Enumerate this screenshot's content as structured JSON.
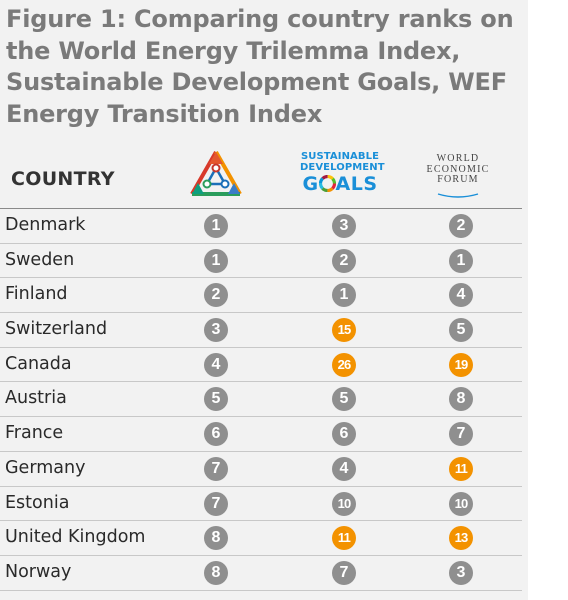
{
  "title": "Figure 1:  Comparing country ranks on the World Energy Trilemma Index, Sustainable Development Goals, WEF Energy Transition Index",
  "header": {
    "country_label": "COUNTRY",
    "sdg_logo_line1": "SUSTAINABLE",
    "sdg_logo_line2": "DEVELOPMENT",
    "sdg_logo_goals_g": "G",
    "sdg_logo_goals_rest": "ALS",
    "wef_logo_line1": "WORLD",
    "wef_logo_line2": "ECONOMIC",
    "wef_logo_line3": "FORUM"
  },
  "colors": {
    "highlight": "#f39200",
    "neutral": "#8f8f8f",
    "sdg_blue": "#1a8fd8"
  },
  "rows": [
    {
      "country": "Denmark",
      "trilemma": "1",
      "sdg": "3",
      "wef": "2"
    },
    {
      "country": "Sweden",
      "trilemma": "1",
      "sdg": "2",
      "wef": "1"
    },
    {
      "country": "Finland",
      "trilemma": "2",
      "sdg": "1",
      "wef": "4"
    },
    {
      "country": "Switzerland",
      "trilemma": "3",
      "sdg": "15",
      "wef": "5"
    },
    {
      "country": "Canada",
      "trilemma": "4",
      "sdg": "26",
      "wef": "19"
    },
    {
      "country": "Austria",
      "trilemma": "5",
      "sdg": "5",
      "wef": "8"
    },
    {
      "country": "France",
      "trilemma": "6",
      "sdg": "6",
      "wef": "7"
    },
    {
      "country": "Germany",
      "trilemma": "7",
      "sdg": "4",
      "wef": "11"
    },
    {
      "country": "Estonia",
      "trilemma": "7",
      "sdg": "10",
      "wef": "10"
    },
    {
      "country": "United Kingdom",
      "trilemma": "8",
      "sdg": "11",
      "wef": "13"
    },
    {
      "country": "Norway",
      "trilemma": "8",
      "sdg": "7",
      "wef": "3"
    }
  ],
  "highlighted": [
    {
      "row": 3,
      "col": "sdg"
    },
    {
      "row": 4,
      "col": "sdg"
    },
    {
      "row": 4,
      "col": "wef"
    },
    {
      "row": 7,
      "col": "wef"
    },
    {
      "row": 9,
      "col": "sdg"
    },
    {
      "row": 9,
      "col": "wef"
    }
  ]
}
